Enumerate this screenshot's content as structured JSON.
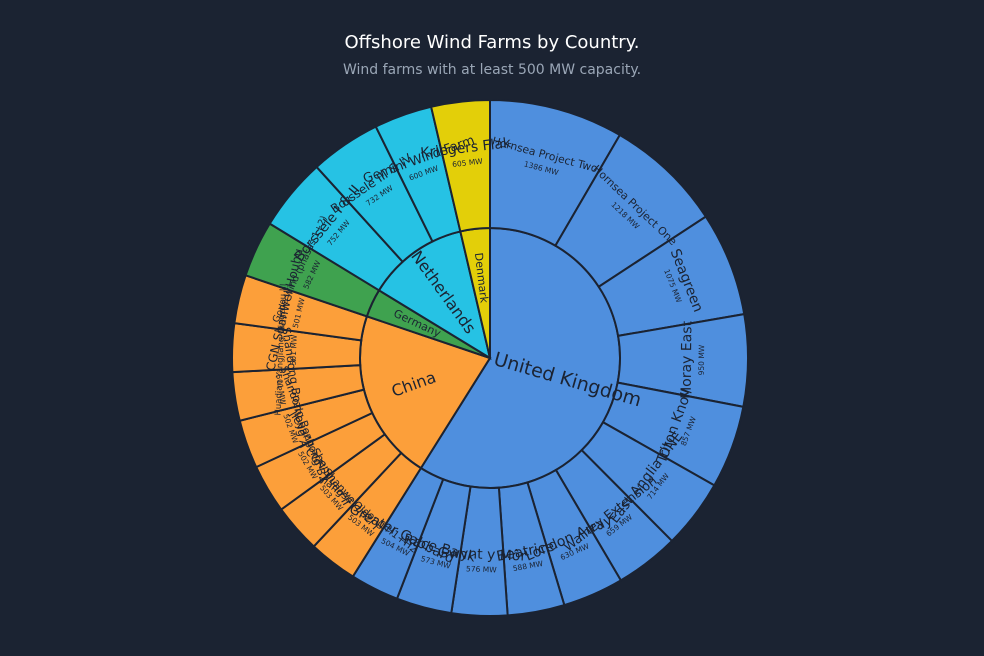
{
  "chart_data": {
    "type": "sunburst",
    "title": "Offshore Wind Farms by Country.",
    "subtitle": "Wind farms with at least 500 MW capacity.",
    "value_unit": "MW",
    "countries": [
      {
        "name": "United Kingdom",
        "color": "#4f8fde",
        "farms": [
          {
            "name": "Hornsea Project Two",
            "value": 1386
          },
          {
            "name": "Hornsea Project One",
            "value": 1218
          },
          {
            "name": "Seagreen",
            "value": 1075
          },
          {
            "name": "Moray East",
            "value": 950
          },
          {
            "name": "Triton Knoll",
            "value": 857
          },
          {
            "name": "East Anglia ONE",
            "value": 714
          },
          {
            "name": "Walney Extension",
            "value": 659
          },
          {
            "name": "London Array",
            "value": 630
          },
          {
            "name": "Beatrice",
            "value": 588
          },
          {
            "name": "Gwynt y Môr",
            "value": 576
          },
          {
            "name": "Race Bank",
            "value": 573
          },
          {
            "name": "Greater Gabbard",
            "value": 504
          }
        ]
      },
      {
        "name": "China",
        "color": "#fc9f3a",
        "farms": [
          {
            "name": "Jiangsu Qidong H1+H2",
            "value": 503
          },
          {
            "name": "CGN Shanwei Jiazi I",
            "value": 503
          },
          {
            "name": "Jieyang Shenquan II",
            "value": 502
          },
          {
            "name": "Shandong Bozhong B2",
            "value": 502
          },
          {
            "name": "Shandong Bozhong A",
            "value": 501
          },
          {
            "name": "Huadian Yangjiang Qingzhou III",
            "value": 501
          },
          {
            "name": "CGN Shanwei Houhu",
            "value": 501
          }
        ]
      },
      {
        "name": "Germany",
        "color": "#3fa24f",
        "farms": [
          {
            "name": "Gode Wind (phases 1+2)",
            "value": 582
          }
        ]
      },
      {
        "name": "Netherlands",
        "color": "#26c2e4",
        "farms": [
          {
            "name": "Borssele I & II",
            "value": 752
          },
          {
            "name": "Borssele III & IV",
            "value": 732
          },
          {
            "name": "Gemini Wind Farm",
            "value": 600
          }
        ]
      },
      {
        "name": "Denmark",
        "color": "#e3cf09",
        "farms": [
          {
            "name": "Kriegers Flak",
            "value": 605
          }
        ]
      }
    ]
  }
}
